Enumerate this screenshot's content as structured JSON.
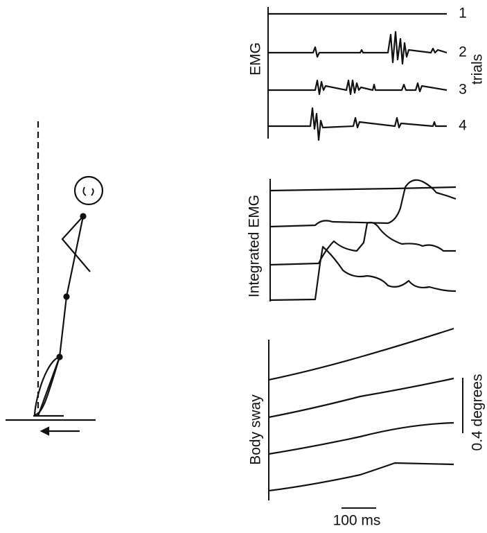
{
  "emg": {
    "label": "EMG",
    "trials_label": "trials",
    "trials": [
      "1",
      "2",
      "3",
      "4"
    ]
  },
  "integrated": {
    "label": "Integrated EMG"
  },
  "sway": {
    "label": "Body sway",
    "scale": "0.4 degrees"
  },
  "time_scale": "100 ms"
}
